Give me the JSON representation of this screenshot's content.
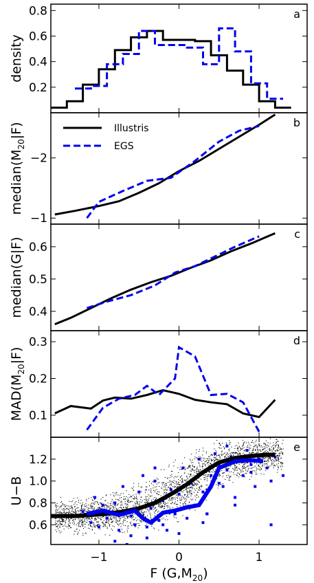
{
  "chart_data": [
    {
      "type": "line",
      "panel": "a",
      "ylabel": "density",
      "ylim": [
        0,
        0.85
      ],
      "xlim": [
        -1.6,
        1.6
      ],
      "yticks": [
        0.2,
        0.4,
        0.6,
        0.8
      ],
      "yticklabels": [
        "0.2",
        "0.4",
        "0.6",
        "0.8"
      ],
      "series": [
        {
          "name": "Illustris",
          "color": "#000000",
          "style": "solid-step",
          "bin_edges": [
            -1.6,
            -1.4,
            -1.2,
            -1.0,
            -0.8,
            -0.6,
            -0.4,
            -0.2,
            0.0,
            0.2,
            0.4,
            0.6,
            0.8,
            1.0,
            1.2,
            1.4
          ],
          "values": [
            0.04,
            0.09,
            0.22,
            0.34,
            0.49,
            0.59,
            0.64,
            0.57,
            0.57,
            0.56,
            0.45,
            0.33,
            0.22,
            0.09,
            0.04
          ]
        },
        {
          "name": "EGS",
          "color": "#0000ee",
          "style": "dashed-step",
          "bin_edges": [
            -1.3,
            -1.1,
            -0.9,
            -0.7,
            -0.5,
            -0.3,
            -0.1,
            0.1,
            0.3,
            0.5,
            0.7,
            0.9,
            1.1,
            1.3
          ],
          "values": [
            0.19,
            0.21,
            0.38,
            0.46,
            0.64,
            0.53,
            0.53,
            0.51,
            0.38,
            0.66,
            0.48,
            0.23,
            0.11
          ]
        }
      ]
    },
    {
      "type": "line",
      "panel": "b",
      "ylabel_base": "median(M",
      "ylabel_sub": "20",
      "ylabel_end": "|F)",
      "ylim": [
        -0.9,
        -2.75
      ],
      "xlim": [
        -1.6,
        1.6
      ],
      "yticks": [
        -1,
        -2
      ],
      "yticklabels": [
        "−1",
        "−2"
      ],
      "legend": {
        "placement": "top-left",
        "entries": [
          "Illustris",
          "EGS"
        ]
      },
      "series": [
        {
          "name": "Illustris",
          "color": "#000000",
          "style": "solid",
          "x": [
            -1.55,
            -1.3,
            -1.0,
            -0.75,
            -0.5,
            -0.25,
            0.0,
            0.25,
            0.5,
            0.75,
            1.0,
            1.2
          ],
          "y": [
            -1.06,
            -1.12,
            -1.2,
            -1.28,
            -1.42,
            -1.58,
            -1.78,
            -1.95,
            -2.15,
            -2.35,
            -2.55,
            -2.72
          ]
        },
        {
          "name": "EGS",
          "color": "#0000ee",
          "style": "dashed",
          "x": [
            -1.15,
            -1.0,
            -0.7,
            -0.4,
            -0.1,
            0.2,
            0.5,
            0.75,
            1.0
          ],
          "y": [
            -1.0,
            -1.27,
            -1.45,
            -1.62,
            -1.67,
            -1.95,
            -2.27,
            -2.45,
            -2.53
          ]
        }
      ]
    },
    {
      "type": "line",
      "panel": "c",
      "ylabel_base": "median(G",
      "ylabel_end": "|F)",
      "ylim": [
        0.34,
        0.67
      ],
      "xlim": [
        -1.6,
        1.6
      ],
      "yticks": [
        0.4,
        0.5,
        0.6
      ],
      "yticklabels": [
        "0.4",
        "0.5",
        "0.6"
      ],
      "series": [
        {
          "name": "Illustris",
          "color": "#000000",
          "style": "solid",
          "x": [
            -1.55,
            -1.35,
            -1.1,
            -0.85,
            -0.6,
            -0.35,
            -0.1,
            0.15,
            0.4,
            0.65,
            0.9,
            1.2
          ],
          "y": [
            0.36,
            0.38,
            0.41,
            0.44,
            0.467,
            0.49,
            0.51,
            0.535,
            0.558,
            0.586,
            0.61,
            0.642
          ]
        },
        {
          "name": "EGS",
          "color": "#0000ee",
          "style": "dashed",
          "x": [
            -1.15,
            -0.9,
            -0.6,
            -0.3,
            -0.05,
            0.2,
            0.45,
            0.7,
            1.0
          ],
          "y": [
            0.41,
            0.43,
            0.45,
            0.48,
            0.52,
            0.54,
            0.57,
            0.6,
            0.632
          ]
        }
      ]
    },
    {
      "type": "line",
      "panel": "d",
      "ylabel_base": "MAD(M",
      "ylabel_sub": "20",
      "ylabel_end": "|F)",
      "ylim": [
        0.04,
        0.33
      ],
      "xlim": [
        -1.6,
        1.6
      ],
      "yticks": [
        0.1,
        0.2,
        0.3
      ],
      "yticklabels": [
        "0.1",
        "0.2",
        "0.3"
      ],
      "series": [
        {
          "name": "Illustris",
          "color": "#000000",
          "style": "solid",
          "x": [
            -1.55,
            -1.35,
            -1.1,
            -0.95,
            -0.8,
            -0.6,
            -0.4,
            -0.2,
            0.0,
            0.2,
            0.4,
            0.6,
            0.8,
            1.0,
            1.2
          ],
          "y": [
            0.105,
            0.125,
            0.118,
            0.14,
            0.148,
            0.145,
            0.155,
            0.168,
            0.158,
            0.142,
            0.135,
            0.13,
            0.105,
            0.095,
            0.142
          ]
        },
        {
          "name": "EGS",
          "color": "#0000ee",
          "style": "dashed",
          "x": [
            -1.15,
            -0.95,
            -0.75,
            -0.55,
            -0.4,
            -0.25,
            -0.05,
            0.0,
            0.2,
            0.4,
            0.6,
            0.8,
            1.0
          ],
          "y": [
            0.06,
            0.12,
            0.145,
            0.155,
            0.18,
            0.155,
            0.2,
            0.285,
            0.26,
            0.155,
            0.158,
            0.135,
            0.055
          ]
        }
      ]
    },
    {
      "type": "scatter",
      "panel": "e",
      "ylabel": "U−B",
      "xlabel_base": "F (G,M",
      "xlabel_sub": "20",
      "xlabel_end": ")",
      "ylim": [
        0.42,
        1.4
      ],
      "xlim": [
        -1.6,
        1.6
      ],
      "yticks": [
        0.6,
        0.8,
        1.0,
        1.2
      ],
      "yticklabels": [
        "0.6",
        "0.8",
        "1.0",
        "1.2"
      ],
      "xticks": [
        -1,
        0,
        1
      ],
      "xticklabels": [
        "−1",
        "0",
        "1"
      ],
      "series": [
        {
          "name": "Illustris",
          "color": "#000000",
          "style": "solid-thick",
          "x": [
            -1.6,
            -1.3,
            -1.1,
            -0.9,
            -0.7,
            -0.5,
            -0.3,
            -0.1,
            0.1,
            0.3,
            0.5,
            0.7,
            0.9,
            1.1,
            1.2
          ],
          "y": [
            0.68,
            0.68,
            0.69,
            0.7,
            0.72,
            0.75,
            0.8,
            0.88,
            0.97,
            1.08,
            1.17,
            1.21,
            1.23,
            1.24,
            1.24
          ]
        },
        {
          "name": "EGS",
          "color": "#0000ee",
          "style": "solid-thick",
          "x": [
            -1.15,
            -0.95,
            -0.75,
            -0.55,
            -0.45,
            -0.35,
            -0.2,
            -0.05,
            0.1,
            0.25,
            0.4,
            0.5,
            0.7,
            0.9,
            1.05
          ],
          "y": [
            0.7,
            0.73,
            0.69,
            0.73,
            0.66,
            0.62,
            0.71,
            0.73,
            0.76,
            0.78,
            0.95,
            1.12,
            1.18,
            1.19,
            1.18
          ]
        }
      ],
      "egs_points": {
        "x": [
          -1.2,
          -1.1,
          -1.05,
          -0.95,
          -0.9,
          -0.8,
          -0.75,
          -0.7,
          -0.6,
          -0.55,
          -0.5,
          -0.45,
          -0.4,
          -0.35,
          -0.3,
          -0.25,
          -0.2,
          -0.15,
          -0.1,
          -0.05,
          0.0,
          0.05,
          0.1,
          0.15,
          0.2,
          0.25,
          0.3,
          0.35,
          0.4,
          0.45,
          0.5,
          0.55,
          0.6,
          0.65,
          0.7,
          0.75,
          0.8,
          0.85,
          0.9,
          0.95,
          1.0,
          1.1,
          1.15,
          1.2,
          -0.8,
          -0.6,
          -0.4,
          -0.2,
          0.0,
          0.3,
          0.5,
          0.7,
          -1.0,
          -0.3,
          0.6,
          0.9,
          1.15,
          -0.65,
          0.35,
          1.3
        ],
        "y": [
          0.72,
          0.62,
          0.85,
          0.78,
          0.66,
          0.8,
          0.55,
          0.95,
          0.68,
          0.6,
          0.9,
          1.05,
          0.58,
          0.75,
          1.0,
          0.64,
          0.82,
          0.55,
          0.92,
          0.7,
          0.88,
          1.12,
          0.66,
          0.98,
          0.78,
          1.2,
          0.9,
          0.7,
          1.05,
          1.25,
          1.15,
          0.95,
          1.1,
          1.22,
          0.85,
          1.18,
          1.05,
          1.28,
          1.15,
          0.95,
          1.2,
          1.12,
          0.6,
          1.22,
          0.45,
          0.5,
          0.48,
          0.6,
          0.52,
          0.62,
          0.98,
          0.78,
          0.58,
          1.12,
          1.32,
          1.08,
          1.0,
          0.42,
          0.7,
          1.05
        ]
      }
    }
  ],
  "panel_letters": [
    "a",
    "b",
    "c",
    "d",
    "e"
  ],
  "legend_labels": [
    "Illustris",
    "EGS"
  ]
}
